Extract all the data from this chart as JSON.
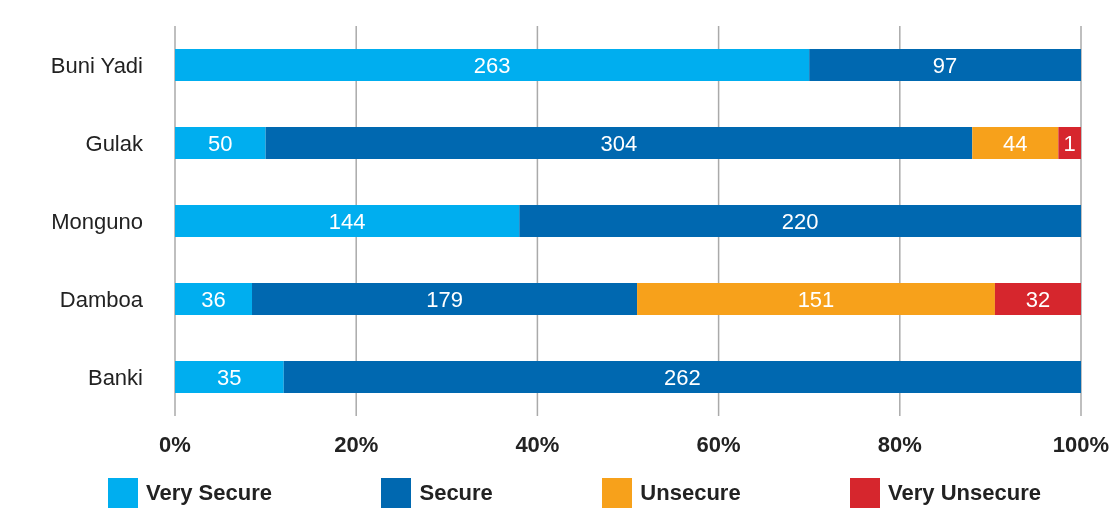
{
  "chart_data": {
    "type": "bar",
    "orientation": "horizontal",
    "stacked": true,
    "categories": [
      "Buni Yadi",
      "Gulak",
      "Monguno",
      "Damboa",
      "Banki"
    ],
    "series": [
      {
        "name": "Very Secure",
        "color": "#00aeef",
        "values": [
          70,
          10,
          38,
          8.5,
          12
        ]
      },
      {
        "name": "Secure",
        "color": "#0068b0",
        "values": [
          30,
          78,
          62,
          42.5,
          88
        ]
      },
      {
        "name": "Unsecure",
        "color": "#f7a11b",
        "values": [
          null,
          9.5,
          null,
          39.5,
          null
        ]
      },
      {
        "name": "Very Unsecure",
        "color": "#d6262d",
        "values": [
          null,
          2.5,
          null,
          9.5,
          null
        ]
      }
    ],
    "annotations": [
      "263",
      "97",
      "50",
      "304",
      "44",
      "1",
      "144",
      "220",
      "36",
      "179",
      "151",
      "32",
      "35",
      "262"
    ],
    "xlim": [
      0,
      100
    ],
    "xticks": [
      {
        "value": 0,
        "label": "0%"
      },
      {
        "value": 20,
        "label": "20%"
      },
      {
        "value": 40,
        "label": "40%"
      },
      {
        "value": 60,
        "label": "60%"
      },
      {
        "value": 80,
        "label": "80%"
      },
      {
        "value": 100,
        "label": "100%"
      }
    ],
    "grid": "x",
    "legend": "bottom"
  }
}
